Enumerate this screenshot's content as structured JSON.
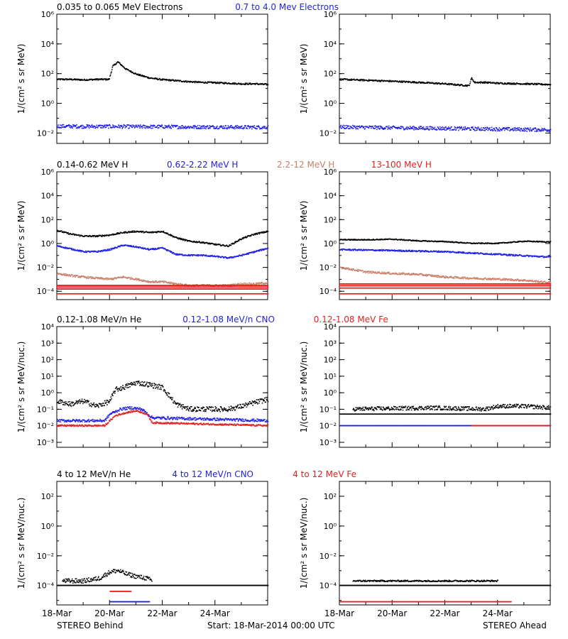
{
  "colors": {
    "black": "#000000",
    "blue": "#1e1ee6",
    "tan": "#c8806a",
    "red": "#e61e1e"
  },
  "footer": {
    "left": "STEREO Behind",
    "center": "Start: 18-Mar-2014 00:00 UTC",
    "right": "STEREO Ahead"
  },
  "chart_data": [
    {
      "type": "scatter",
      "panel": "row1-left",
      "row_titles": [
        {
          "text": "0.035 to 0.065 MeV Electrons",
          "color": "black"
        },
        {
          "text": "0.7 to 4.0 Mev Electrons",
          "color": "blue"
        }
      ],
      "ylabel": "1/(cm² s sr MeV)",
      "yscale": "log",
      "ylim": [
        0.002,
        1000000
      ],
      "y_ticks": [
        {
          "v": 0.01,
          "label": "10⁻²"
        },
        {
          "v": 1,
          "label": "10⁰"
        },
        {
          "v": 100,
          "label": "10²"
        },
        {
          "v": 10000,
          "label": "10⁴"
        },
        {
          "v": 1000000,
          "label": "10⁶"
        }
      ],
      "xlim_days": [
        0,
        8
      ],
      "series": [
        {
          "color": "black",
          "x": [
            0,
            0.5,
            1,
            1.5,
            1.97,
            2.1,
            2.3,
            2.6,
            3,
            3.5,
            4,
            4.5,
            5,
            5.5,
            6,
            6.5,
            7,
            7.5,
            8
          ],
          "y": [
            40,
            40,
            37,
            40,
            40,
            300,
            600,
            200,
            90,
            50,
            38,
            33,
            28,
            25,
            24,
            22,
            20,
            20,
            18
          ],
          "spread": 0.05
        },
        {
          "color": "blue",
          "x": [
            0,
            1,
            2,
            3,
            4,
            5,
            6,
            7,
            8
          ],
          "y": [
            0.028,
            0.027,
            0.027,
            0.026,
            0.026,
            0.025,
            0.025,
            0.024,
            0.024
          ],
          "spread": 0.12
        }
      ]
    },
    {
      "type": "scatter",
      "panel": "row1-right",
      "ylabel": "1/(cm² s sr MeV)",
      "yscale": "log",
      "ylim": [
        0.002,
        1000000
      ],
      "y_ticks": [
        {
          "v": 0.01,
          "label": "10⁻²"
        },
        {
          "v": 1,
          "label": "10⁰"
        },
        {
          "v": 100,
          "label": "10²"
        },
        {
          "v": 10000,
          "label": "10⁴"
        },
        {
          "v": 1000000,
          "label": "10⁶"
        }
      ],
      "xlim_days": [
        0,
        8
      ],
      "series": [
        {
          "color": "black",
          "x": [
            0,
            1,
            2,
            3,
            4,
            4.9,
            5.0,
            5.1,
            5.5,
            6,
            7,
            8
          ],
          "y": [
            40,
            35,
            30,
            25,
            20,
            15,
            50,
            25,
            25,
            22,
            20,
            18
          ],
          "spread": 0.05
        },
        {
          "color": "blue",
          "x": [
            0,
            2,
            4,
            6,
            8
          ],
          "y": [
            0.025,
            0.022,
            0.02,
            0.018,
            0.016
          ],
          "spread": 0.12
        }
      ]
    },
    {
      "type": "scatter",
      "panel": "row2-left",
      "row_titles": [
        {
          "text": "0.14-0.62 MeV H",
          "color": "black"
        },
        {
          "text": "0.62-2.22 MeV H",
          "color": "blue"
        },
        {
          "text": "2.2-12 MeV H",
          "color": "tan"
        },
        {
          "text": "13-100 MeV H",
          "color": "red"
        }
      ],
      "ylabel": "1/(cm² s sr MeV)",
      "yscale": "log",
      "ylim": [
        2e-05,
        1000000
      ],
      "y_ticks": [
        {
          "v": 0.0001,
          "label": "10⁻⁴"
        },
        {
          "v": 0.01,
          "label": "10⁻²"
        },
        {
          "v": 1,
          "label": "10⁰"
        },
        {
          "v": 100,
          "label": "10²"
        },
        {
          "v": 10000,
          "label": "10⁴"
        },
        {
          "v": 1000000,
          "label": "10⁶"
        }
      ],
      "xlim_days": [
        0,
        8
      ],
      "series": [
        {
          "color": "black",
          "x": [
            0,
            0.5,
            1,
            1.5,
            2,
            2.5,
            3,
            3.5,
            4,
            4.5,
            5,
            5.5,
            6,
            6.5,
            7,
            7.5,
            8
          ],
          "y": [
            12,
            6,
            4,
            4,
            5,
            8,
            10,
            8,
            10,
            3,
            1.5,
            1.2,
            0.8,
            0.6,
            2.5,
            6,
            10
          ],
          "spread": 0.06
        },
        {
          "color": "blue",
          "x": [
            0,
            0.5,
            1,
            1.5,
            2,
            2.5,
            3,
            3.5,
            4,
            4.5,
            5,
            5.5,
            6,
            6.5,
            7,
            7.5,
            8
          ],
          "y": [
            0.6,
            0.35,
            0.2,
            0.2,
            0.3,
            0.7,
            0.5,
            0.3,
            0.4,
            0.12,
            0.1,
            0.1,
            0.08,
            0.06,
            0.1,
            0.2,
            0.4
          ],
          "spread": 0.06
        },
        {
          "color": "tan",
          "x": [
            0,
            0.5,
            1,
            1.5,
            2,
            2.5,
            3,
            3.5,
            4,
            4.5,
            5,
            5.5,
            6,
            6.5,
            7,
            7.5,
            8
          ],
          "y": [
            0.003,
            0.002,
            0.0015,
            0.0012,
            0.001,
            0.0015,
            0.001,
            0.0006,
            0.0006,
            0.0004,
            0.0003,
            0.0003,
            0.0003,
            0.0003,
            0.0004,
            0.0004,
            0.0005
          ],
          "spread": 0.08
        },
        {
          "color": "red",
          "x": [
            0,
            8
          ],
          "y": [
            0.0003,
            0.0003
          ],
          "spread": 0.0,
          "bands": [
            0.0003,
            0.00022,
            0.00015,
            6e-05
          ]
        }
      ]
    },
    {
      "type": "scatter",
      "panel": "row2-right",
      "ylabel": "1/(cm² s sr MeV)",
      "yscale": "log",
      "ylim": [
        2e-05,
        1000000
      ],
      "y_ticks": [
        {
          "v": 0.0001,
          "label": "10⁻⁴"
        },
        {
          "v": 0.01,
          "label": "10⁻²"
        },
        {
          "v": 1,
          "label": "10⁰"
        },
        {
          "v": 100,
          "label": "10²"
        },
        {
          "v": 10000,
          "label": "10⁴"
        },
        {
          "v": 1000000,
          "label": "10⁶"
        }
      ],
      "xlim_days": [
        0,
        8
      ],
      "series": [
        {
          "color": "black",
          "x": [
            0,
            1,
            2,
            3,
            4,
            5,
            6,
            7,
            8
          ],
          "y": [
            2,
            2,
            2.2,
            1.6,
            1.4,
            1,
            1,
            1.5,
            1.3
          ],
          "spread": 0.04
        },
        {
          "color": "blue",
          "x": [
            0,
            2,
            4,
            6,
            8
          ],
          "y": [
            0.3,
            0.25,
            0.2,
            0.12,
            0.07
          ],
          "spread": 0.06
        },
        {
          "color": "tan",
          "x": [
            0,
            1,
            2,
            3,
            4,
            5,
            6,
            7,
            8
          ],
          "y": [
            0.01,
            0.004,
            0.003,
            0.0025,
            0.0015,
            0.0012,
            0.001,
            0.0008,
            0.0005
          ],
          "spread": 0.08
        },
        {
          "color": "red",
          "x": [
            0,
            8
          ],
          "y": [
            0.0003,
            0.0003
          ],
          "spread": 0.0,
          "bands": [
            0.0004,
            0.00028,
            0.00018,
            6e-05
          ]
        }
      ]
    },
    {
      "type": "scatter",
      "panel": "row3-left",
      "row_titles": [
        {
          "text": "0.12-1.08 MeV/n He",
          "color": "black"
        },
        {
          "text": "0.12-1.08 MeV/n CNO",
          "color": "blue"
        },
        {
          "text": "0.12-1.08 MeV Fe",
          "color": "red"
        }
      ],
      "ylabel": "1/(cm² s sr MeV/nuc.)",
      "yscale": "log",
      "ylim": [
        0.0005,
        10000
      ],
      "y_ticks": [
        {
          "v": 0.001,
          "label": "10⁻³"
        },
        {
          "v": 0.01,
          "label": "10⁻²"
        },
        {
          "v": 0.1,
          "label": "10⁻¹"
        },
        {
          "v": 1,
          "label": "10⁰"
        },
        {
          "v": 10,
          "label": "10¹"
        },
        {
          "v": 100,
          "label": "10²"
        },
        {
          "v": 1000,
          "label": "10³"
        },
        {
          "v": 10000,
          "label": "10⁴"
        }
      ],
      "xlim_days": [
        0,
        8
      ],
      "series": [
        {
          "color": "black",
          "x": [
            0,
            0.5,
            1,
            1.5,
            2,
            2.2,
            2.5,
            3,
            3.5,
            4,
            4.5,
            5,
            5.5,
            6,
            6.5,
            7,
            7.5,
            8
          ],
          "y": [
            0.3,
            0.2,
            0.3,
            0.15,
            0.3,
            1.5,
            2,
            4,
            3,
            2,
            0.2,
            0.1,
            0.1,
            0.1,
            0.1,
            0.15,
            0.25,
            0.4
          ],
          "spread": 0.15
        },
        {
          "color": "blue",
          "x": [
            0,
            1.8,
            2,
            2.4,
            2.8,
            3.2,
            3.6,
            8
          ],
          "y": [
            0.02,
            0.02,
            0.05,
            0.1,
            0.12,
            0.1,
            0.03,
            0.02
          ],
          "spread": 0.08
        },
        {
          "color": "red",
          "x": [
            0,
            1.8,
            2.2,
            2.6,
            3,
            3.4,
            3.6,
            8
          ],
          "y": [
            0.01,
            0.01,
            0.04,
            0.06,
            0.08,
            0.05,
            0.015,
            0.01
          ],
          "spread": 0.05
        }
      ]
    },
    {
      "type": "scatter",
      "panel": "row3-right",
      "ylabel": "1/(cm² s sr MeV/nuc.)",
      "yscale": "log",
      "ylim": [
        0.0005,
        10000
      ],
      "y_ticks": [
        {
          "v": 0.001,
          "label": "10⁻³"
        },
        {
          "v": 0.01,
          "label": "10⁻²"
        },
        {
          "v": 0.1,
          "label": "10⁻¹"
        },
        {
          "v": 1,
          "label": "10⁰"
        },
        {
          "v": 10,
          "label": "10¹"
        },
        {
          "v": 100,
          "label": "10²"
        },
        {
          "v": 1000,
          "label": "10³"
        },
        {
          "v": 10000,
          "label": "10⁴"
        }
      ],
      "xlim_days": [
        0,
        8
      ],
      "series": [
        {
          "color": "black",
          "x": [
            0,
            8
          ],
          "y": [
            0.05,
            0.05
          ],
          "spread": 0.0
        },
        {
          "color": "black",
          "x": [
            0.5,
            2,
            3.5,
            5.5,
            6,
            7,
            8
          ],
          "y": [
            0.1,
            0.11,
            0.12,
            0.1,
            0.15,
            0.15,
            0.12
          ],
          "spread": 0.12
        },
        {
          "color": "blue",
          "x": [
            0,
            8
          ],
          "y": [
            0.01,
            0.01
          ],
          "spread": 0.0
        },
        {
          "color": "red",
          "x": [
            5,
            8
          ],
          "y": [
            0.01,
            0.01
          ],
          "spread": 0.0
        }
      ]
    },
    {
      "type": "scatter",
      "panel": "row4-left",
      "row_titles": [
        {
          "text": "4 to 12 MeV/n He",
          "color": "black"
        },
        {
          "text": "4 to 12 MeV/n CNO",
          "color": "blue"
        },
        {
          "text": "4 to 12 MeV Fe",
          "color": "red"
        }
      ],
      "ylabel": "1/(cm² s sr MeV/nuc.)",
      "yscale": "log",
      "ylim": [
        5e-06,
        1000
      ],
      "y_ticks": [
        {
          "v": 0.0001,
          "label": "10⁻⁴"
        },
        {
          "v": 0.01,
          "label": "10⁻²"
        },
        {
          "v": 1,
          "label": "10⁰"
        },
        {
          "v": 100,
          "label": "10²"
        }
      ],
      "xlim_days": [
        0,
        8
      ],
      "x_ticks": [
        {
          "v": 0,
          "label": "18-Mar"
        },
        {
          "v": 2,
          "label": "20-Mar"
        },
        {
          "v": 4,
          "label": "22-Mar"
        },
        {
          "v": 6,
          "label": "24-Mar"
        }
      ],
      "series": [
        {
          "color": "black",
          "x": [
            0,
            8
          ],
          "y": [
            0.0001,
            0.0001
          ],
          "spread": 0.0
        },
        {
          "color": "black",
          "x": [
            0.2,
            1,
            1.6,
            2,
            2.3,
            2.6,
            3,
            3.4,
            3.6
          ],
          "y": [
            0.0002,
            0.0002,
            0.0003,
            0.0008,
            0.001,
            0.0006,
            0.0004,
            0.0003,
            0.0002
          ],
          "spread": 0.15
        },
        {
          "color": "blue",
          "x": [
            2,
            3.5
          ],
          "y": [
            8e-06,
            8e-06
          ],
          "spread": 0.0
        },
        {
          "color": "red",
          "x": [
            2,
            2.8
          ],
          "y": [
            4e-05,
            4e-05
          ],
          "spread": 0.0
        }
      ]
    },
    {
      "type": "scatter",
      "panel": "row4-right",
      "ylabel": "1/(cm² s sr MeV/nuc.)",
      "yscale": "log",
      "ylim": [
        5e-06,
        1000
      ],
      "y_ticks": [
        {
          "v": 0.0001,
          "label": "10⁻⁴"
        },
        {
          "v": 0.01,
          "label": "10⁻²"
        },
        {
          "v": 1,
          "label": "10⁰"
        },
        {
          "v": 100,
          "label": "10²"
        }
      ],
      "xlim_days": [
        0,
        8
      ],
      "x_ticks": [
        {
          "v": 0,
          "label": "18-Mar"
        },
        {
          "v": 2,
          "label": "20-Mar"
        },
        {
          "v": 4,
          "label": "22-Mar"
        },
        {
          "v": 6,
          "label": "24-Mar"
        }
      ],
      "series": [
        {
          "color": "black",
          "x": [
            0,
            8
          ],
          "y": [
            0.0001,
            0.0001
          ],
          "spread": 0.0
        },
        {
          "color": "black",
          "x": [
            0.5,
            2.5,
            3.5,
            5.5,
            6
          ],
          "y": [
            0.0002,
            0.0002,
            0.0002,
            0.0002,
            0.0002
          ],
          "spread": 0.05
        },
        {
          "color": "red",
          "x": [
            0,
            6.5
          ],
          "y": [
            8e-06,
            8e-06
          ],
          "spread": 0.0
        }
      ]
    }
  ]
}
